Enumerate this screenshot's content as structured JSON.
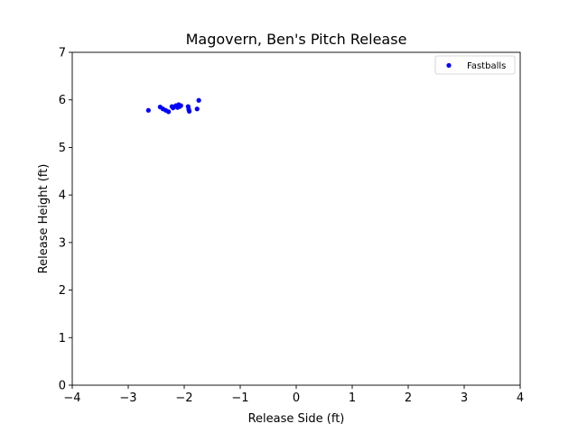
{
  "chart_data": {
    "type": "scatter",
    "title": "Magovern, Ben's Pitch Release",
    "xlabel": "Release Side (ft)",
    "ylabel": "Release Height (ft)",
    "xlim": [
      -4,
      4
    ],
    "ylim": [
      0,
      7
    ],
    "xticks": [
      -4,
      -3,
      -2,
      -1,
      0,
      1,
      2,
      3,
      4
    ],
    "xtick_labels": [
      "−4",
      "−3",
      "−2",
      "−1",
      "0",
      "1",
      "2",
      "3",
      "4"
    ],
    "yticks": [
      0,
      1,
      2,
      3,
      4,
      5,
      6,
      7
    ],
    "ytick_labels": [
      "0",
      "1",
      "2",
      "3",
      "4",
      "5",
      "6",
      "7"
    ],
    "grid": false,
    "legend_position": "top-right",
    "series": [
      {
        "name": "Fastballs",
        "color": "#0000ff",
        "x": [
          -2.64,
          -2.43,
          -2.38,
          -2.33,
          -2.28,
          -2.22,
          -2.2,
          -2.15,
          -2.12,
          -2.1,
          -2.1,
          -2.08,
          -2.06,
          -1.93,
          -1.92,
          -1.91,
          -1.77,
          -1.74
        ],
        "y": [
          5.78,
          5.85,
          5.81,
          5.78,
          5.75,
          5.86,
          5.83,
          5.88,
          5.84,
          5.9,
          5.87,
          5.86,
          5.88,
          5.86,
          5.8,
          5.76,
          5.81,
          5.99
        ]
      }
    ]
  }
}
